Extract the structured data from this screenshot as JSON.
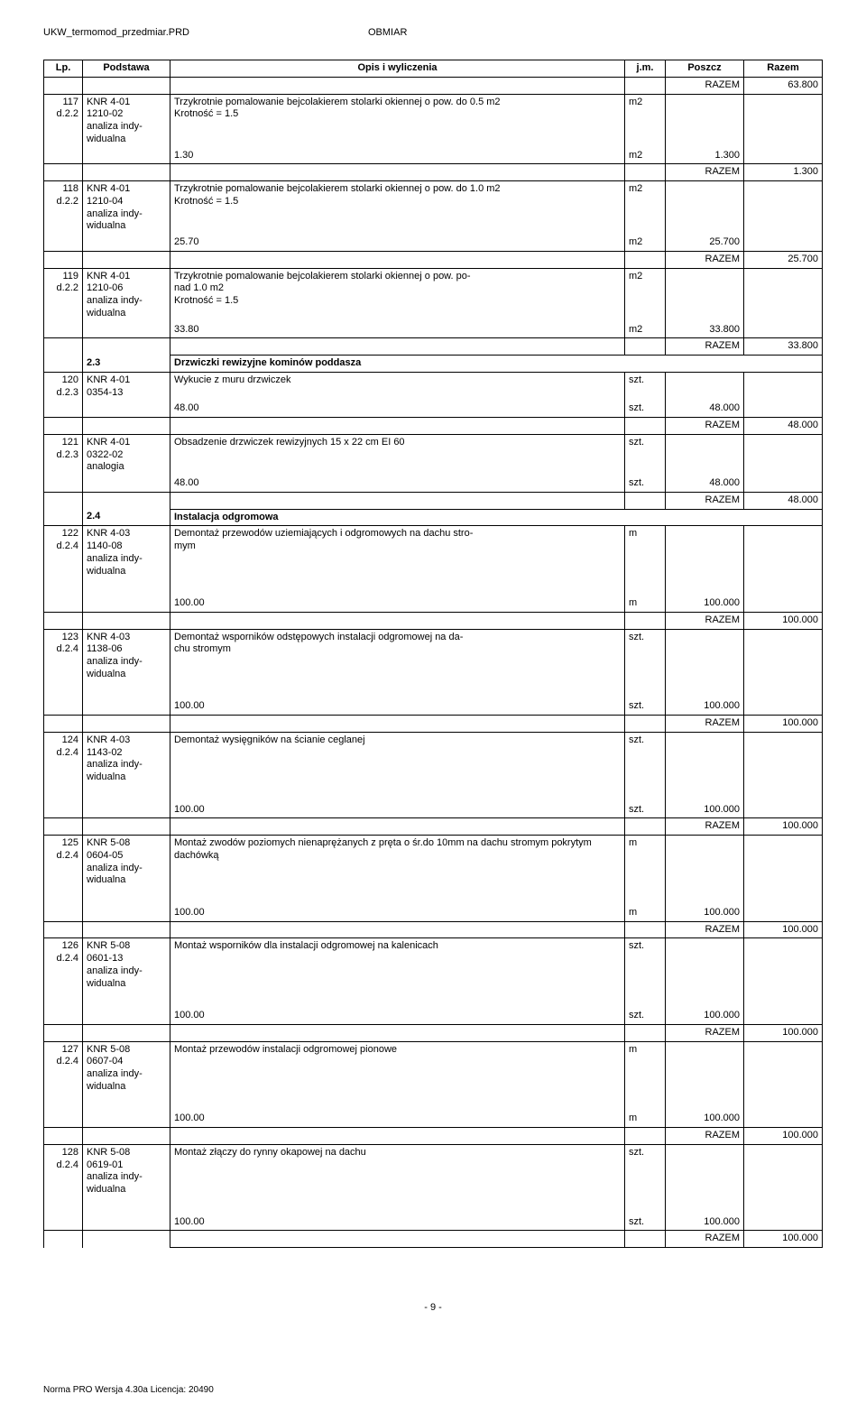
{
  "header": {
    "left": "UKW_termomod_przedmiar.PRD",
    "right": "OBMIAR"
  },
  "columns": {
    "lp": "Lp.",
    "podstawa": "Podstawa",
    "opis": "Opis i wyliczenia",
    "jm": "j.m.",
    "poszcz": "Poszcz",
    "razem": "Razem"
  },
  "r117": {
    "lp": "117",
    "dref": "d.2.2",
    "code": "KNR 4-01\n1210-02\nanaliza indy-\nwidualna",
    "opis1": "Trzykrotnie pomalowanie bejcolakierem stolarki okiennej o pow. do 0.5 m2\nKrotność = 1.5",
    "jm1": "m2",
    "calc": "1.30",
    "jm2": "m2",
    "poszcz": "1.300",
    "razem_lbl": "RAZEM",
    "razem_prev": "63.800",
    "razem": "1.300"
  },
  "r118": {
    "lp": "118",
    "dref": "d.2.2",
    "code": "KNR 4-01\n1210-04\nanaliza indy-\nwidualna",
    "opis1": "Trzykrotnie pomalowanie bejcolakierem stolarki okiennej o pow. do 1.0 m2\nKrotność = 1.5",
    "jm1": "m2",
    "calc": "25.70",
    "jm2": "m2",
    "poszcz": "25.700",
    "razem_lbl": "RAZEM",
    "razem": "25.700"
  },
  "r119": {
    "lp": "119",
    "dref": "d.2.2",
    "code": "KNR 4-01\n1210-06\nanaliza indy-\nwidualna",
    "opis1": "Trzykrotnie pomalowanie bejcolakierem stolarki okiennej o pow. po-\nnad 1.0 m2\nKrotność = 1.5",
    "jm1": "m2",
    "calc": "33.80",
    "jm2": "m2",
    "poszcz": "33.800",
    "razem_lbl": "RAZEM",
    "razem": "33.800"
  },
  "s23": {
    "num": "2.3",
    "title": "Drzwiczki rewizyjne kominów poddasza"
  },
  "r120": {
    "lp": "120",
    "dref": "d.2.3",
    "code": "KNR 4-01\n0354-13",
    "opis1": "Wykucie z muru drzwiczek",
    "jm1": "szt.",
    "calc": "48.00",
    "jm2": "szt.",
    "poszcz": "48.000",
    "razem_lbl": "RAZEM",
    "razem": "48.000"
  },
  "r121": {
    "lp": "121",
    "dref": "d.2.3",
    "code": "KNR 4-01\n0322-02\nanalogia",
    "opis1": "Obsadzenie drzwiczek rewizyjnych 15 x 22 cm EI 60",
    "jm1": "szt.",
    "calc": "48.00",
    "jm2": "szt.",
    "poszcz": "48.000",
    "razem_lbl": "RAZEM",
    "razem": "48.000"
  },
  "s24": {
    "num": "2.4",
    "title": "Instalacja odgromowa"
  },
  "r122": {
    "lp": "122",
    "dref": "d.2.4",
    "code": "KNR 4-03\n1140-08\nanaliza indy-\nwidualna",
    "opis1": "Demontaż przewodów uziemiających i odgromowych na dachu stro-\nmym",
    "jm1": "m",
    "calc": "100.00",
    "jm2": "m",
    "poszcz": "100.000",
    "razem_lbl": "RAZEM",
    "razem": "100.000"
  },
  "r123": {
    "lp": "123",
    "dref": "d.2.4",
    "code": "KNR 4-03\n1138-06\nanaliza indy-\nwidualna",
    "opis1": "Demontaż wsporników odstępowych instalacji odgromowej na da-\nchu stromym",
    "jm1": "szt.",
    "calc": "100.00",
    "jm2": "szt.",
    "poszcz": "100.000",
    "razem_lbl": "RAZEM",
    "razem": "100.000"
  },
  "r124": {
    "lp": "124",
    "dref": "d.2.4",
    "code": "KNR 4-03\n1143-02\nanaliza indy-\nwidualna",
    "opis1": "Demontaż wysięgników na ścianie ceglanej",
    "jm1": "szt.",
    "calc": "100.00",
    "jm2": "szt.",
    "poszcz": "100.000",
    "razem_lbl": "RAZEM",
    "razem": "100.000"
  },
  "r125": {
    "lp": "125",
    "dref": "d.2.4",
    "code": "KNR 5-08\n0604-05\nanaliza indy-\nwidualna",
    "opis1": "Montaż zwodów poziomych nienaprężanych z pręta o śr.do 10mm na dachu stromym pokrytym dachówką",
    "jm1": "m",
    "calc": "100.00",
    "jm2": "m",
    "poszcz": "100.000",
    "razem_lbl": "RAZEM",
    "razem": "100.000"
  },
  "r126": {
    "lp": "126",
    "dref": "d.2.4",
    "code": "KNR 5-08\n0601-13\nanaliza indy-\nwidualna",
    "opis1": "Montaż wsporników dla instalacji odgromowej na kalenicach",
    "jm1": "szt.",
    "calc": "100.00",
    "jm2": "szt.",
    "poszcz": "100.000",
    "razem_lbl": "RAZEM",
    "razem": "100.000"
  },
  "r127": {
    "lp": "127",
    "dref": "d.2.4",
    "code": "KNR 5-08\n0607-04\nanaliza indy-\nwidualna",
    "opis1": "Montaż przewodów instalacji odgromowej pionowe",
    "jm1": "m",
    "calc": "100.00",
    "jm2": "m",
    "poszcz": "100.000",
    "razem_lbl": "RAZEM",
    "razem": "100.000"
  },
  "r128": {
    "lp": "128",
    "dref": "d.2.4",
    "code": "KNR 5-08\n0619-01\nanaliza indy-\nwidualna",
    "opis1": "Montaż złączy do rynny okapowej na dachu",
    "jm1": "szt.",
    "calc": "100.00",
    "jm2": "szt.",
    "poszcz": "100.000",
    "razem_lbl": "RAZEM",
    "razem": "100.000"
  },
  "pagenum": "- 9 -",
  "footer": "Norma PRO Wersja 4.30a Licencja: 20490"
}
